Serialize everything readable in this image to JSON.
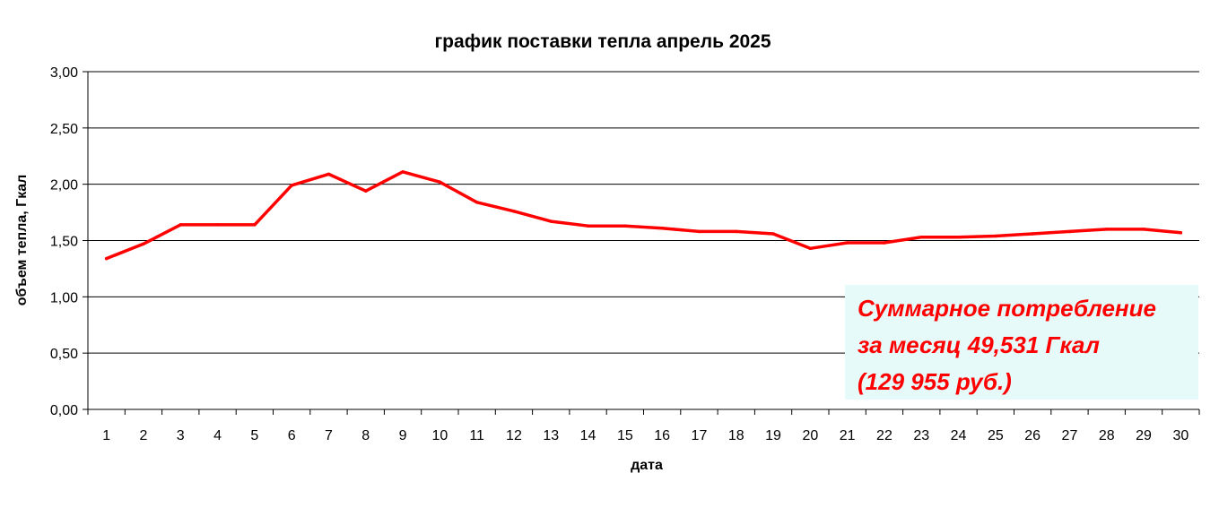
{
  "colors": {
    "series": "#ff0000",
    "note_text": "#ff0000",
    "note_background": "#e6fafa",
    "gridline": "#000000"
  },
  "chart_data": {
    "type": "line",
    "title": "график поставки тепла апрель 2025",
    "xlabel": "дата",
    "ylabel": "объем тепла, Гкал",
    "categories": [
      "1",
      "2",
      "3",
      "4",
      "5",
      "6",
      "7",
      "8",
      "9",
      "10",
      "11",
      "12",
      "13",
      "14",
      "15",
      "16",
      "17",
      "18",
      "19",
      "20",
      "21",
      "22",
      "23",
      "24",
      "25",
      "26",
      "27",
      "28",
      "29",
      "30"
    ],
    "ylim": [
      0,
      3
    ],
    "yticks": [
      "0,00",
      "0,50",
      "1,00",
      "1,50",
      "2,00",
      "2,50",
      "3,00"
    ],
    "grid": true,
    "legend": "none",
    "series": [
      {
        "values": [
          1.34,
          1.47,
          1.64,
          1.64,
          1.64,
          1.99,
          2.09,
          1.94,
          2.11,
          2.02,
          1.84,
          1.76,
          1.67,
          1.63,
          1.63,
          1.61,
          1.58,
          1.58,
          1.56,
          1.43,
          1.48,
          1.48,
          1.53,
          1.53,
          1.54,
          1.56,
          1.58,
          1.6,
          1.6,
          1.57
        ]
      }
    ]
  },
  "annotation": {
    "lines": [
      "Суммарное потребление",
      "за месяц 49,531 Гкал",
      "(129 955 руб.)"
    ]
  }
}
